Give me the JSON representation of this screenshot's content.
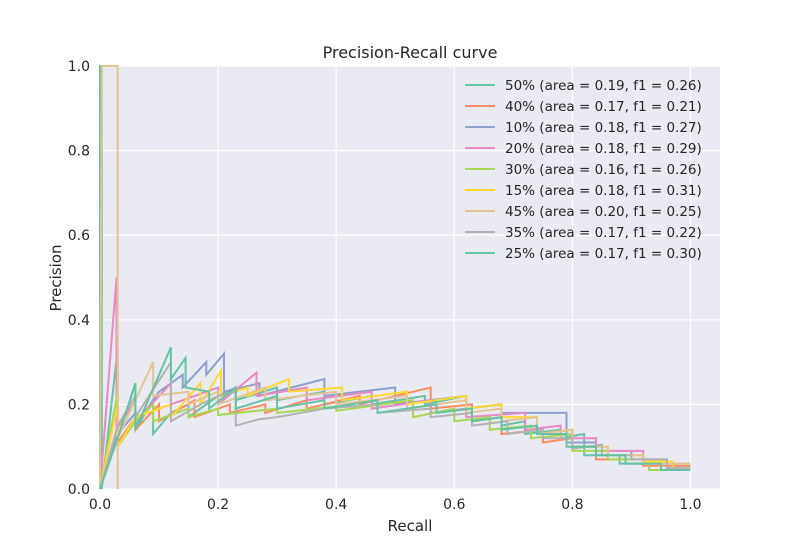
{
  "chart_data": {
    "type": "line",
    "title": "Precision-Recall curve",
    "xlabel": "Recall",
    "ylabel": "Precision",
    "xlim": [
      0.0,
      1.05
    ],
    "ylim": [
      0.0,
      1.0
    ],
    "x_ticks": [
      "0.0",
      "0.2",
      "0.4",
      "0.6",
      "0.8",
      "1.0"
    ],
    "y_ticks": [
      "0.0",
      "0.2",
      "0.4",
      "0.6",
      "0.8",
      "1.0"
    ],
    "grid": true,
    "legend_position": "top-right",
    "series": [
      {
        "name": "50% (area = 0.19, f1 = 0.26)",
        "color": "#66c2a5",
        "points": [
          [
            0,
            0
          ],
          [
            0,
            1.0
          ],
          [
            0.003,
            1.0
          ],
          [
            0.003,
            0.0
          ],
          [
            0.03,
            0.33
          ],
          [
            0.03,
            0.12
          ],
          [
            0.06,
            0.25
          ],
          [
            0.06,
            0.14
          ],
          [
            0.09,
            0.21
          ],
          [
            0.09,
            0.13
          ],
          [
            0.12,
            0.18
          ],
          [
            0.15,
            0.2
          ],
          [
            0.15,
            0.17
          ],
          [
            0.2,
            0.22
          ],
          [
            0.23,
            0.24
          ],
          [
            0.23,
            0.21
          ],
          [
            0.3,
            0.24
          ],
          [
            0.3,
            0.21
          ],
          [
            0.38,
            0.23
          ],
          [
            0.38,
            0.2
          ],
          [
            0.46,
            0.22
          ],
          [
            0.46,
            0.2
          ],
          [
            0.55,
            0.22
          ],
          [
            0.55,
            0.2
          ],
          [
            0.62,
            0.22
          ],
          [
            0.62,
            0.19
          ],
          [
            0.68,
            0.2
          ],
          [
            0.68,
            0.15
          ],
          [
            0.72,
            0.16
          ],
          [
            0.72,
            0.13
          ],
          [
            0.78,
            0.14
          ],
          [
            0.78,
            0.12
          ],
          [
            0.82,
            0.13
          ],
          [
            0.82,
            0.08
          ],
          [
            0.88,
            0.08
          ],
          [
            0.88,
            0.06
          ],
          [
            0.93,
            0.06
          ],
          [
            0.93,
            0.045
          ],
          [
            1.0,
            0.045
          ]
        ]
      },
      {
        "name": "40% (area = 0.17, f1 = 0.21)",
        "color": "#fc8d62",
        "points": [
          [
            0,
            0
          ],
          [
            0.03,
            0.15
          ],
          [
            0.03,
            0.11
          ],
          [
            0.06,
            0.17
          ],
          [
            0.06,
            0.14
          ],
          [
            0.1,
            0.2
          ],
          [
            0.1,
            0.16
          ],
          [
            0.16,
            0.21
          ],
          [
            0.16,
            0.17
          ],
          [
            0.22,
            0.2
          ],
          [
            0.22,
            0.18
          ],
          [
            0.28,
            0.2
          ],
          [
            0.28,
            0.18
          ],
          [
            0.35,
            0.21
          ],
          [
            0.35,
            0.19
          ],
          [
            0.44,
            0.22
          ],
          [
            0.44,
            0.2
          ],
          [
            0.56,
            0.24
          ],
          [
            0.56,
            0.19
          ],
          [
            0.63,
            0.2
          ],
          [
            0.63,
            0.16
          ],
          [
            0.68,
            0.17
          ],
          [
            0.68,
            0.13
          ],
          [
            0.75,
            0.14
          ],
          [
            0.75,
            0.11
          ],
          [
            0.8,
            0.12
          ],
          [
            0.8,
            0.1
          ],
          [
            0.84,
            0.1
          ],
          [
            0.84,
            0.07
          ],
          [
            0.92,
            0.07
          ],
          [
            0.92,
            0.055
          ],
          [
            1.0,
            0.055
          ]
        ]
      },
      {
        "name": "10% (area = 0.18, f1 = 0.27)",
        "color": "#8da0cb",
        "points": [
          [
            0,
            0
          ],
          [
            0.03,
            0.13
          ],
          [
            0.06,
            0.18
          ],
          [
            0.06,
            0.15
          ],
          [
            0.1,
            0.23
          ],
          [
            0.14,
            0.27
          ],
          [
            0.14,
            0.24
          ],
          [
            0.18,
            0.3
          ],
          [
            0.18,
            0.27
          ],
          [
            0.21,
            0.32
          ],
          [
            0.21,
            0.23
          ],
          [
            0.27,
            0.25
          ],
          [
            0.27,
            0.22
          ],
          [
            0.38,
            0.26
          ],
          [
            0.38,
            0.22
          ],
          [
            0.5,
            0.24
          ],
          [
            0.5,
            0.2
          ],
          [
            0.62,
            0.22
          ],
          [
            0.62,
            0.19
          ],
          [
            0.68,
            0.2
          ],
          [
            0.68,
            0.18
          ],
          [
            0.79,
            0.18
          ],
          [
            0.79,
            0.11
          ],
          [
            0.84,
            0.11
          ],
          [
            0.84,
            0.09
          ],
          [
            0.9,
            0.09
          ],
          [
            0.9,
            0.07
          ],
          [
            0.96,
            0.07
          ],
          [
            0.96,
            0.05
          ],
          [
            1.0,
            0.05
          ]
        ]
      },
      {
        "name": "20% (area = 0.18, f1 = 0.29)",
        "color": "#e78ac3",
        "points": [
          [
            0,
            0
          ],
          [
            0.028,
            0.5
          ],
          [
            0.028,
            0.14
          ],
          [
            0.06,
            0.21
          ],
          [
            0.06,
            0.16
          ],
          [
            0.12,
            0.25
          ],
          [
            0.12,
            0.2
          ],
          [
            0.2,
            0.24
          ],
          [
            0.2,
            0.2
          ],
          [
            0.265,
            0.275
          ],
          [
            0.265,
            0.22
          ],
          [
            0.35,
            0.24
          ],
          [
            0.35,
            0.21
          ],
          [
            0.46,
            0.23
          ],
          [
            0.46,
            0.19
          ],
          [
            0.56,
            0.21
          ],
          [
            0.56,
            0.18
          ],
          [
            0.62,
            0.19
          ],
          [
            0.62,
            0.17
          ],
          [
            0.72,
            0.18
          ],
          [
            0.72,
            0.14
          ],
          [
            0.78,
            0.15
          ],
          [
            0.78,
            0.12
          ],
          [
            0.84,
            0.12
          ],
          [
            0.84,
            0.09
          ],
          [
            0.92,
            0.09
          ],
          [
            0.92,
            0.065
          ],
          [
            0.96,
            0.065
          ],
          [
            0.96,
            0.05
          ],
          [
            1.0,
            0.05
          ]
        ]
      },
      {
        "name": "30% (area = 0.16, f1 = 0.26)",
        "color": "#a6d854",
        "points": [
          [
            0,
            0
          ],
          [
            0.03,
            0.23
          ],
          [
            0.03,
            0.1
          ],
          [
            0.06,
            0.16
          ],
          [
            0.09,
            0.2
          ],
          [
            0.09,
            0.16
          ],
          [
            0.15,
            0.19
          ],
          [
            0.15,
            0.17
          ],
          [
            0.2,
            0.19
          ],
          [
            0.2,
            0.175
          ],
          [
            0.3,
            0.19
          ],
          [
            0.3,
            0.18
          ],
          [
            0.4,
            0.195
          ],
          [
            0.4,
            0.185
          ],
          [
            0.53,
            0.21
          ],
          [
            0.53,
            0.17
          ],
          [
            0.6,
            0.19
          ],
          [
            0.6,
            0.16
          ],
          [
            0.66,
            0.17
          ],
          [
            0.66,
            0.14
          ],
          [
            0.73,
            0.15
          ],
          [
            0.73,
            0.12
          ],
          [
            0.8,
            0.13
          ],
          [
            0.8,
            0.09
          ],
          [
            0.86,
            0.09
          ],
          [
            0.86,
            0.07
          ],
          [
            0.93,
            0.07
          ],
          [
            0.93,
            0.045
          ],
          [
            1.0,
            0.045
          ]
        ]
      },
      {
        "name": "15% (area = 0.18, f1 = 0.31)",
        "color": "#ffd92f",
        "points": [
          [
            0,
            0
          ],
          [
            0.03,
            0.2
          ],
          [
            0.03,
            0.1
          ],
          [
            0.06,
            0.17
          ],
          [
            0.12,
            0.2
          ],
          [
            0.12,
            0.17
          ],
          [
            0.17,
            0.25
          ],
          [
            0.17,
            0.2
          ],
          [
            0.205,
            0.28
          ],
          [
            0.205,
            0.22
          ],
          [
            0.25,
            0.24
          ],
          [
            0.25,
            0.22
          ],
          [
            0.32,
            0.26
          ],
          [
            0.32,
            0.23
          ],
          [
            0.41,
            0.24
          ],
          [
            0.41,
            0.21
          ],
          [
            0.52,
            0.23
          ],
          [
            0.52,
            0.2
          ],
          [
            0.62,
            0.22
          ],
          [
            0.62,
            0.19
          ],
          [
            0.68,
            0.2
          ],
          [
            0.68,
            0.17
          ],
          [
            0.74,
            0.17
          ],
          [
            0.74,
            0.13
          ],
          [
            0.8,
            0.14
          ],
          [
            0.8,
            0.1
          ],
          [
            0.86,
            0.1
          ],
          [
            0.86,
            0.08
          ],
          [
            0.92,
            0.08
          ],
          [
            0.92,
            0.065
          ],
          [
            0.97,
            0.065
          ],
          [
            0.97,
            0.05
          ],
          [
            1.0,
            0.05
          ]
        ]
      },
      {
        "name": "45% (area = 0.20, f1 = 0.25)",
        "color": "#e5c494",
        "points": [
          [
            0,
            0
          ],
          [
            0.003,
            1.0
          ],
          [
            0.03,
            1.0
          ],
          [
            0.03,
            0.0
          ],
          [
            0.03,
            0.12
          ],
          [
            0.09,
            0.3
          ],
          [
            0.09,
            0.22
          ],
          [
            0.15,
            0.23
          ],
          [
            0.15,
            0.2
          ],
          [
            0.2,
            0.23
          ],
          [
            0.2,
            0.2
          ],
          [
            0.28,
            0.24
          ],
          [
            0.28,
            0.21
          ],
          [
            0.4,
            0.23
          ],
          [
            0.4,
            0.2
          ],
          [
            0.52,
            0.22
          ],
          [
            0.52,
            0.19
          ],
          [
            0.62,
            0.21
          ],
          [
            0.62,
            0.18
          ],
          [
            0.68,
            0.19
          ],
          [
            0.68,
            0.16
          ],
          [
            0.74,
            0.17
          ],
          [
            0.74,
            0.13
          ],
          [
            0.8,
            0.14
          ],
          [
            0.8,
            0.1
          ],
          [
            0.86,
            0.1
          ],
          [
            0.86,
            0.08
          ],
          [
            0.92,
            0.08
          ],
          [
            0.92,
            0.06
          ],
          [
            1.0,
            0.06
          ]
        ]
      },
      {
        "name": "35% (area = 0.17, f1 = 0.22)",
        "color": "#b3b3b3",
        "points": [
          [
            0,
            0
          ],
          [
            0.03,
            0.15
          ],
          [
            0.06,
            0.22
          ],
          [
            0.06,
            0.17
          ],
          [
            0.12,
            0.3
          ],
          [
            0.12,
            0.16
          ],
          [
            0.17,
            0.2
          ],
          [
            0.2,
            0.22
          ],
          [
            0.23,
            0.23
          ],
          [
            0.23,
            0.15
          ],
          [
            0.27,
            0.165
          ],
          [
            0.3,
            0.17
          ],
          [
            0.38,
            0.19
          ],
          [
            0.47,
            0.2
          ],
          [
            0.47,
            0.18
          ],
          [
            0.56,
            0.19
          ],
          [
            0.56,
            0.17
          ],
          [
            0.63,
            0.18
          ],
          [
            0.63,
            0.15
          ],
          [
            0.69,
            0.16
          ],
          [
            0.69,
            0.13
          ],
          [
            0.75,
            0.14
          ],
          [
            0.75,
            0.12
          ],
          [
            0.8,
            0.12
          ],
          [
            0.8,
            0.095
          ],
          [
            0.85,
            0.105
          ],
          [
            0.85,
            0.08
          ],
          [
            0.9,
            0.08
          ],
          [
            0.9,
            0.07
          ],
          [
            0.96,
            0.07
          ],
          [
            0.96,
            0.05
          ],
          [
            1.0,
            0.05
          ]
        ]
      },
      {
        "name": "25% (area = 0.17, f1 = 0.30)",
        "color": "#66c2a5",
        "points": [
          [
            0,
            0
          ],
          [
            0.03,
            0.12
          ],
          [
            0.06,
            0.25
          ],
          [
            0.06,
            0.14
          ],
          [
            0.12,
            0.335
          ],
          [
            0.12,
            0.26
          ],
          [
            0.145,
            0.31
          ],
          [
            0.145,
            0.24
          ],
          [
            0.185,
            0.23
          ],
          [
            0.185,
            0.19
          ],
          [
            0.23,
            0.24
          ],
          [
            0.23,
            0.19
          ],
          [
            0.3,
            0.22
          ],
          [
            0.3,
            0.19
          ],
          [
            0.38,
            0.21
          ],
          [
            0.38,
            0.19
          ],
          [
            0.47,
            0.21
          ],
          [
            0.47,
            0.18
          ],
          [
            0.57,
            0.2
          ],
          [
            0.57,
            0.18
          ],
          [
            0.63,
            0.19
          ],
          [
            0.63,
            0.16
          ],
          [
            0.68,
            0.17
          ],
          [
            0.68,
            0.14
          ],
          [
            0.74,
            0.15
          ],
          [
            0.74,
            0.13
          ],
          [
            0.79,
            0.13
          ],
          [
            0.79,
            0.1
          ],
          [
            0.84,
            0.1
          ],
          [
            0.84,
            0.08
          ],
          [
            0.89,
            0.08
          ],
          [
            0.89,
            0.06
          ],
          [
            0.95,
            0.06
          ],
          [
            0.95,
            0.045
          ],
          [
            1.0,
            0.045
          ]
        ]
      }
    ]
  }
}
